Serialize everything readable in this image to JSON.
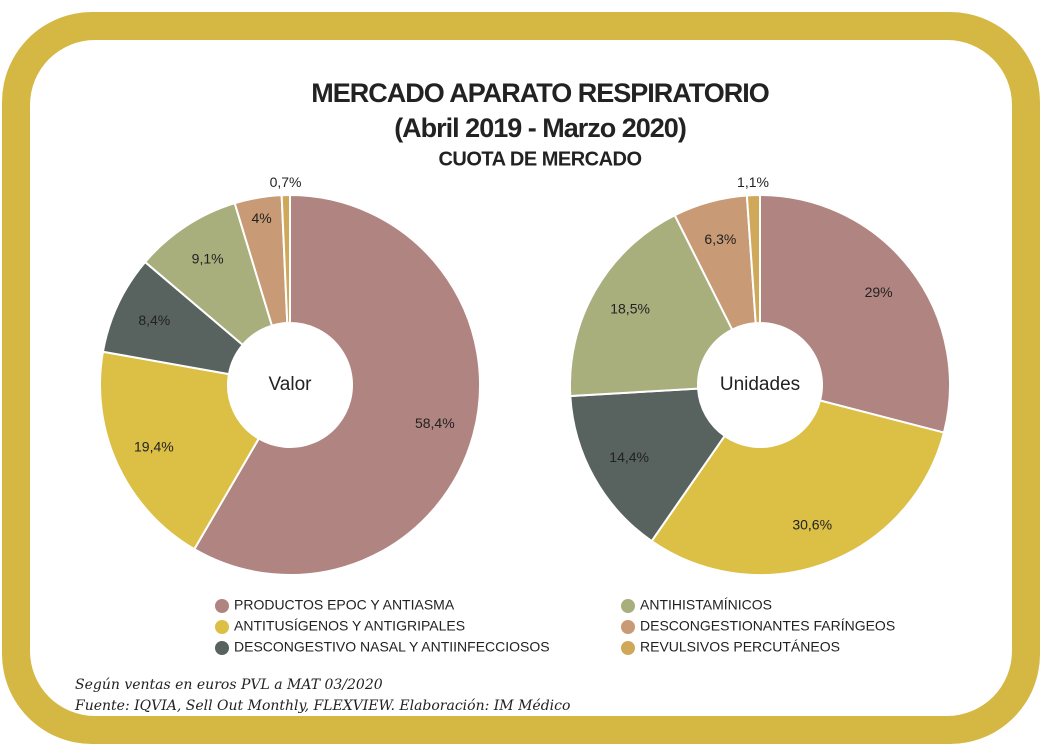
{
  "chart_data": {
    "type": "donut",
    "title": "MERCADO APARATO RESPIRATORIO",
    "subtitle": "(Abril 2019 - Marzo 2020)",
    "heading": "CUOTA DE MERCADO",
    "categories": [
      "PRODUCTOS EPOC Y ANTIASMA",
      "ANTITUSÍGENOS Y ANTIGRIPALES",
      "DESCONGESTIVO NASAL Y ANTIINFECCIOSOS",
      "ANTIHISTAMÍNICOS",
      "DESCONGESTIONANTES FARÍNGEOS",
      "REVULSIVOS PERCUTÁNEOS"
    ],
    "colors": [
      "#b08480",
      "#dcbf45",
      "#58625e",
      "#a9ae7d",
      "#c89a75",
      "#cfa85a"
    ],
    "series": [
      {
        "name": "Valor",
        "values": [
          58.4,
          19.4,
          8.4,
          9.1,
          4,
          0.7
        ],
        "value_labels": [
          "58,4%",
          "19,4%",
          "8,4%",
          "9,1%",
          "4%",
          "0,7%"
        ]
      },
      {
        "name": "Unidades",
        "values": [
          29,
          30.6,
          14.4,
          18.5,
          6.3,
          1.1
        ],
        "value_labels": [
          "29%",
          "30,6%",
          "14,4%",
          "18,5%",
          "6,3%",
          "1,1%"
        ]
      }
    ],
    "notes": [
      "Según ventas en euros PVL a MAT 03/2020",
      "Fuente: IQVIA, Sell Out Monthly, FLEXVIEW. Elaboración: IM Médico"
    ]
  }
}
